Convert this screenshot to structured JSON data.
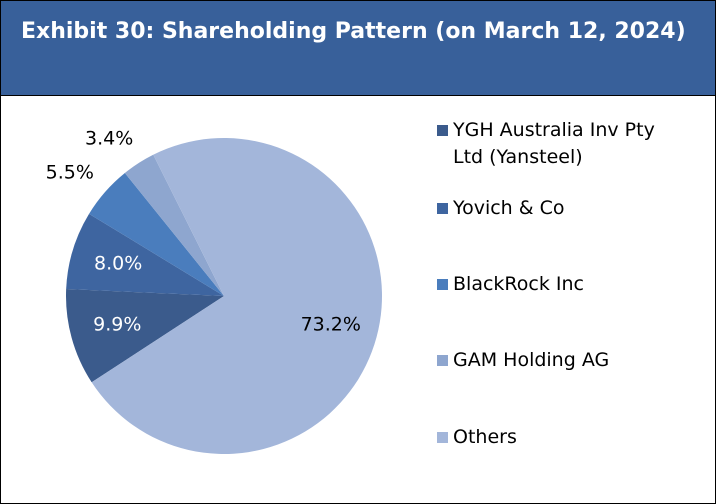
{
  "chart_data": {
    "type": "pie",
    "title": "Exhibit 30: Shareholding Pattern (on March 12, 2024)",
    "categories": [
      "YGH Australia Inv Pty Ltd (Yansteel)",
      "Yovich & Co",
      "BlackRock Inc",
      "GAM Holding AG",
      "Others"
    ],
    "values": [
      9.9,
      8.0,
      5.5,
      3.4,
      73.2
    ],
    "value_labels": [
      "9.9%",
      "8.0%",
      "5.5%",
      "3.4%",
      "73.2%"
    ],
    "colors": [
      "#3b5b8c",
      "#3e65a0",
      "#4a7dbd",
      "#8ea6cf",
      "#a3b6da"
    ],
    "legend": "right"
  }
}
